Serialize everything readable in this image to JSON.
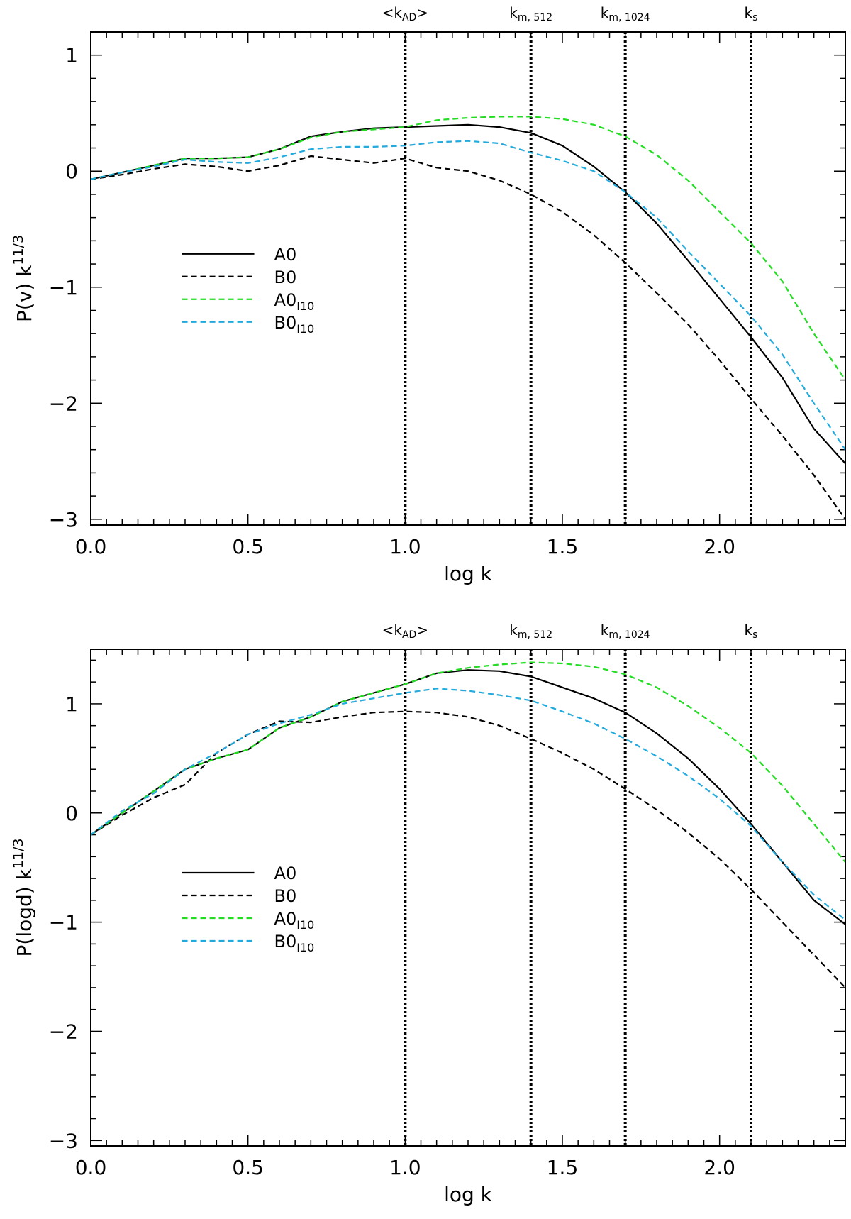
{
  "chart_data": [
    {
      "type": "line",
      "xlabel": "log k",
      "ylabel_base": "P(v) k",
      "ylabel_exp": "11/3",
      "xlim": [
        0.0,
        2.4
      ],
      "ylim": [
        -3.05,
        1.2
      ],
      "xticks": [
        0.0,
        0.5,
        1.0,
        1.5,
        2.0
      ],
      "xtick_labels": [
        "0.0",
        "0.5",
        "1.0",
        "1.5",
        "2.0"
      ],
      "yticks": [
        -3,
        -2,
        -1,
        0,
        1
      ],
      "ytick_labels": [
        "−3",
        "−2",
        "−1",
        "0",
        "1"
      ],
      "markers": [
        {
          "x": 1.0,
          "base": "<k",
          "sub": "AD",
          "tail": ">"
        },
        {
          "x": 1.4,
          "base": "k",
          "sub": "m, 512",
          "tail": ""
        },
        {
          "x": 1.7,
          "base": "k",
          "sub": "m, 1024",
          "tail": ""
        },
        {
          "x": 2.1,
          "base": "k",
          "sub": "s",
          "tail": ""
        }
      ],
      "series": [
        {
          "name": "A0",
          "sub": "",
          "color": "#000000",
          "dash": "solid",
          "x": [
            0.0,
            0.1,
            0.2,
            0.3,
            0.4,
            0.5,
            0.6,
            0.7,
            0.8,
            0.9,
            1.0,
            1.1,
            1.2,
            1.3,
            1.4,
            1.5,
            1.6,
            1.7,
            1.8,
            1.9,
            2.0,
            2.1,
            2.2,
            2.3,
            2.4
          ],
          "y": [
            -0.07,
            -0.01,
            0.05,
            0.11,
            0.11,
            0.12,
            0.19,
            0.3,
            0.34,
            0.37,
            0.38,
            0.39,
            0.4,
            0.38,
            0.33,
            0.22,
            0.04,
            -0.18,
            -0.45,
            -0.77,
            -1.1,
            -1.43,
            -1.78,
            -2.22,
            -2.52
          ]
        },
        {
          "name": "B0",
          "sub": "",
          "color": "#000000",
          "dash": "dashed",
          "x": [
            0.0,
            0.1,
            0.2,
            0.3,
            0.4,
            0.5,
            0.6,
            0.7,
            0.8,
            0.9,
            1.0,
            1.1,
            1.2,
            1.3,
            1.4,
            1.5,
            1.6,
            1.7,
            1.8,
            1.9,
            2.0,
            2.1,
            2.2,
            2.3,
            2.4
          ],
          "y": [
            -0.07,
            -0.03,
            0.02,
            0.06,
            0.04,
            0.0,
            0.05,
            0.13,
            0.1,
            0.07,
            0.11,
            0.03,
            0.0,
            -0.08,
            -0.2,
            -0.35,
            -0.55,
            -0.79,
            -1.05,
            -1.32,
            -1.63,
            -1.96,
            -2.28,
            -2.62,
            -3.0
          ]
        },
        {
          "name": "A0",
          "sub": "I10",
          "color": "#22dd22",
          "dash": "dashed",
          "x": [
            0.0,
            0.1,
            0.2,
            0.3,
            0.4,
            0.5,
            0.6,
            0.7,
            0.8,
            0.9,
            1.0,
            1.1,
            1.2,
            1.3,
            1.4,
            1.5,
            1.6,
            1.7,
            1.8,
            1.9,
            2.0,
            2.1,
            2.2,
            2.3,
            2.4
          ],
          "y": [
            -0.07,
            -0.01,
            0.05,
            0.11,
            0.11,
            0.12,
            0.19,
            0.29,
            0.34,
            0.36,
            0.38,
            0.44,
            0.46,
            0.47,
            0.47,
            0.45,
            0.4,
            0.3,
            0.14,
            -0.08,
            -0.35,
            -0.62,
            -0.95,
            -1.4,
            -1.8
          ]
        },
        {
          "name": "B0",
          "sub": "I10",
          "color": "#22aadd",
          "dash": "dashed",
          "x": [
            0.0,
            0.1,
            0.2,
            0.3,
            0.4,
            0.5,
            0.6,
            0.7,
            0.8,
            0.9,
            1.0,
            1.1,
            1.2,
            1.3,
            1.4,
            1.5,
            1.6,
            1.7,
            1.8,
            1.9,
            2.0,
            2.1,
            2.2,
            2.3,
            2.4
          ],
          "y": [
            -0.07,
            -0.01,
            0.04,
            0.1,
            0.08,
            0.07,
            0.12,
            0.19,
            0.21,
            0.21,
            0.22,
            0.25,
            0.26,
            0.24,
            0.16,
            0.09,
            0.0,
            -0.18,
            -0.4,
            -0.69,
            -0.97,
            -1.25,
            -1.58,
            -2.0,
            -2.4
          ]
        }
      ],
      "legend": [
        "A0",
        "B0",
        "A0_I10",
        "B0_I10"
      ],
      "legend_loc": "lower-left"
    },
    {
      "type": "line",
      "xlabel": "log k",
      "ylabel_base": "P(logd) k",
      "ylabel_exp": "11/3",
      "xlim": [
        0.0,
        2.4
      ],
      "ylim": [
        -3.05,
        1.5
      ],
      "xticks": [
        0.0,
        0.5,
        1.0,
        1.5,
        2.0
      ],
      "xtick_labels": [
        "0.0",
        "0.5",
        "1.0",
        "1.5",
        "2.0"
      ],
      "yticks": [
        -3,
        -2,
        -1,
        0,
        1
      ],
      "ytick_labels": [
        "−3",
        "−2",
        "−1",
        "0",
        "1"
      ],
      "markers": [
        {
          "x": 1.0,
          "base": "<k",
          "sub": "AD",
          "tail": ">"
        },
        {
          "x": 1.4,
          "base": "k",
          "sub": "m, 512",
          "tail": ""
        },
        {
          "x": 1.7,
          "base": "k",
          "sub": "m, 1024",
          "tail": ""
        },
        {
          "x": 2.1,
          "base": "k",
          "sub": "s",
          "tail": ""
        }
      ],
      "series": [
        {
          "name": "A0",
          "sub": "",
          "color": "#000000",
          "dash": "solid",
          "x": [
            0.0,
            0.1,
            0.2,
            0.3,
            0.4,
            0.5,
            0.6,
            0.7,
            0.8,
            0.9,
            1.0,
            1.1,
            1.2,
            1.3,
            1.4,
            1.5,
            1.6,
            1.7,
            1.8,
            1.9,
            2.0,
            2.1,
            2.2,
            2.3,
            2.4
          ],
          "y": [
            -0.2,
            0.0,
            0.2,
            0.4,
            0.5,
            0.58,
            0.78,
            0.88,
            1.02,
            1.1,
            1.18,
            1.28,
            1.31,
            1.3,
            1.25,
            1.15,
            1.05,
            0.92,
            0.73,
            0.5,
            0.22,
            -0.1,
            -0.45,
            -0.8,
            -1.02
          ]
        },
        {
          "name": "B0",
          "sub": "",
          "color": "#000000",
          "dash": "dashed",
          "x": [
            0.0,
            0.1,
            0.2,
            0.3,
            0.4,
            0.5,
            0.6,
            0.7,
            0.8,
            0.9,
            1.0,
            1.1,
            1.2,
            1.3,
            1.4,
            1.5,
            1.6,
            1.7,
            1.8,
            1.9,
            2.0,
            2.1,
            2.2,
            2.3,
            2.4
          ],
          "y": [
            -0.2,
            -0.02,
            0.14,
            0.26,
            0.55,
            0.72,
            0.84,
            0.83,
            0.88,
            0.92,
            0.93,
            0.92,
            0.88,
            0.8,
            0.68,
            0.55,
            0.4,
            0.22,
            0.03,
            -0.18,
            -0.42,
            -0.7,
            -1.0,
            -1.3,
            -1.6
          ]
        },
        {
          "name": "A0",
          "sub": "I10",
          "color": "#22dd22",
          "dash": "dashed",
          "x": [
            0.0,
            0.1,
            0.2,
            0.3,
            0.4,
            0.5,
            0.6,
            0.7,
            0.8,
            0.9,
            1.0,
            1.1,
            1.2,
            1.3,
            1.4,
            1.5,
            1.6,
            1.7,
            1.8,
            1.9,
            2.0,
            2.1,
            2.2,
            2.3,
            2.4
          ],
          "y": [
            -0.2,
            0.0,
            0.2,
            0.4,
            0.5,
            0.58,
            0.78,
            0.88,
            1.02,
            1.1,
            1.18,
            1.28,
            1.33,
            1.36,
            1.38,
            1.37,
            1.34,
            1.27,
            1.15,
            0.98,
            0.78,
            0.55,
            0.25,
            -0.1,
            -0.45
          ]
        },
        {
          "name": "B0",
          "sub": "I10",
          "color": "#22aadd",
          "dash": "dashed",
          "x": [
            0.0,
            0.1,
            0.2,
            0.3,
            0.4,
            0.5,
            0.6,
            0.7,
            0.8,
            0.9,
            1.0,
            1.1,
            1.2,
            1.3,
            1.4,
            1.5,
            1.6,
            1.7,
            1.8,
            1.9,
            2.0,
            2.1,
            2.2,
            2.3,
            2.4
          ],
          "y": [
            -0.2,
            0.02,
            0.18,
            0.4,
            0.55,
            0.72,
            0.82,
            0.9,
            1.0,
            1.05,
            1.1,
            1.14,
            1.12,
            1.08,
            1.03,
            0.93,
            0.82,
            0.68,
            0.52,
            0.34,
            0.13,
            -0.12,
            -0.45,
            -0.75,
            -0.98
          ]
        }
      ],
      "legend": [
        "A0",
        "B0",
        "A0_I10",
        "B0_I10"
      ],
      "legend_loc": "lower-left"
    }
  ]
}
